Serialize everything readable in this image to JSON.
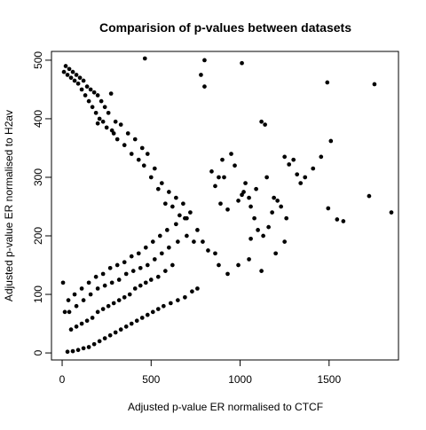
{
  "chart_data": {
    "type": "scatter",
    "title": "Comparision of p-values between datasets",
    "xlabel": "Adjusted p-value ER normalised to CTCF",
    "ylabel": "Adjusted p-value ER normalised to H2av",
    "xlim": [
      -60,
      1890
    ],
    "ylim": [
      -12,
      515
    ],
    "xticks": [
      0,
      500,
      1000,
      1500
    ],
    "yticks": [
      0,
      100,
      200,
      300,
      400,
      500
    ],
    "grid": false,
    "legend": "none",
    "point_color": "#000000",
    "series": [
      {
        "x": [
          465,
          800,
          1010,
          1490,
          1755,
          780,
          800,
          275,
          1725,
          1850,
          1545,
          1580,
          1510,
          1495,
          200,
          290,
          1120,
          1140,
          1150,
          1190,
          1275,
          1300,
          1320,
          1365,
          1410,
          1455,
          1250,
          1340,
          970,
          1020,
          880,
          900,
          950,
          1050,
          1090,
          1180,
          1210,
          1230,
          1260,
          840,
          860,
          890,
          910,
          930,
          990,
          1010,
          1030,
          1060,
          1080,
          1100,
          1130,
          1160,
          1060,
          1250,
          1200,
          1050,
          1120,
          990,
          930,
          880,
          860,
          820,
          790,
          760,
          740,
          720,
          700,
          680,
          660,
          640,
          620,
          600,
          580,
          560,
          540,
          520,
          500,
          480,
          460,
          450,
          430,
          410,
          390,
          370,
          350,
          330,
          310,
          300,
          280,
          260,
          250,
          240,
          230,
          220,
          210,
          200,
          190,
          180,
          170,
          160,
          150,
          140,
          130,
          120,
          110,
          100,
          90,
          80,
          70,
          60,
          50,
          40,
          30,
          20,
          10,
          5,
          760,
          730,
          690,
          650,
          610,
          570,
          540,
          510,
          480,
          450,
          420,
          390,
          360,
          330,
          300,
          270,
          240,
          210,
          180,
          150,
          120,
          90,
          60,
          30,
          620,
          580,
          540,
          500,
          470,
          440,
          410,
          380,
          350,
          320,
          290,
          260,
          230,
          200,
          170,
          140,
          110,
          80,
          50,
          700,
          650,
          600,
          560,
          520,
          480,
          440,
          400,
          360,
          320,
          280,
          240,
          200,
          160,
          120,
          80,
          40,
          690,
          640,
          590,
          550,
          510,
          470,
          430,
          390,
          350,
          310,
          270,
          230,
          190,
          150,
          110,
          70,
          35,
          15
        ],
        "y": [
          503,
          500,
          495,
          462,
          459,
          475,
          455,
          443,
          268,
          240,
          228,
          225,
          362,
          247,
          392,
          375,
          395,
          390,
          300,
          265,
          322,
          330,
          305,
          300,
          315,
          335,
          335,
          290,
          320,
          275,
          300,
          330,
          340,
          265,
          280,
          240,
          260,
          250,
          230,
          310,
          285,
          255,
          300,
          245,
          260,
          270,
          290,
          250,
          230,
          210,
          200,
          215,
          195,
          190,
          170,
          160,
          140,
          150,
          135,
          150,
          170,
          175,
          190,
          210,
          190,
          240,
          230,
          255,
          235,
          265,
          250,
          275,
          255,
          290,
          280,
          315,
          300,
          340,
          320,
          350,
          330,
          365,
          340,
          375,
          355,
          390,
          365,
          395,
          380,
          410,
          385,
          420,
          395,
          430,
          400,
          440,
          410,
          445,
          420,
          450,
          430,
          455,
          440,
          465,
          450,
          470,
          460,
          475,
          465,
          480,
          470,
          485,
          475,
          490,
          480,
          120,
          110,
          105,
          95,
          90,
          85,
          80,
          75,
          70,
          65,
          60,
          55,
          50,
          45,
          40,
          35,
          30,
          25,
          20,
          15,
          10,
          8,
          5,
          3,
          2,
          150,
          140,
          130,
          125,
          120,
          115,
          110,
          100,
          95,
          90,
          85,
          80,
          75,
          70,
          60,
          55,
          50,
          45,
          40,
          200,
          190,
          180,
          170,
          160,
          150,
          145,
          140,
          135,
          125,
          120,
          115,
          110,
          100,
          90,
          80,
          70,
          230,
          220,
          210,
          200,
          190,
          180,
          170,
          165,
          155,
          150,
          145,
          135,
          130,
          120,
          110,
          100,
          90,
          70
        ]
      }
    ]
  }
}
